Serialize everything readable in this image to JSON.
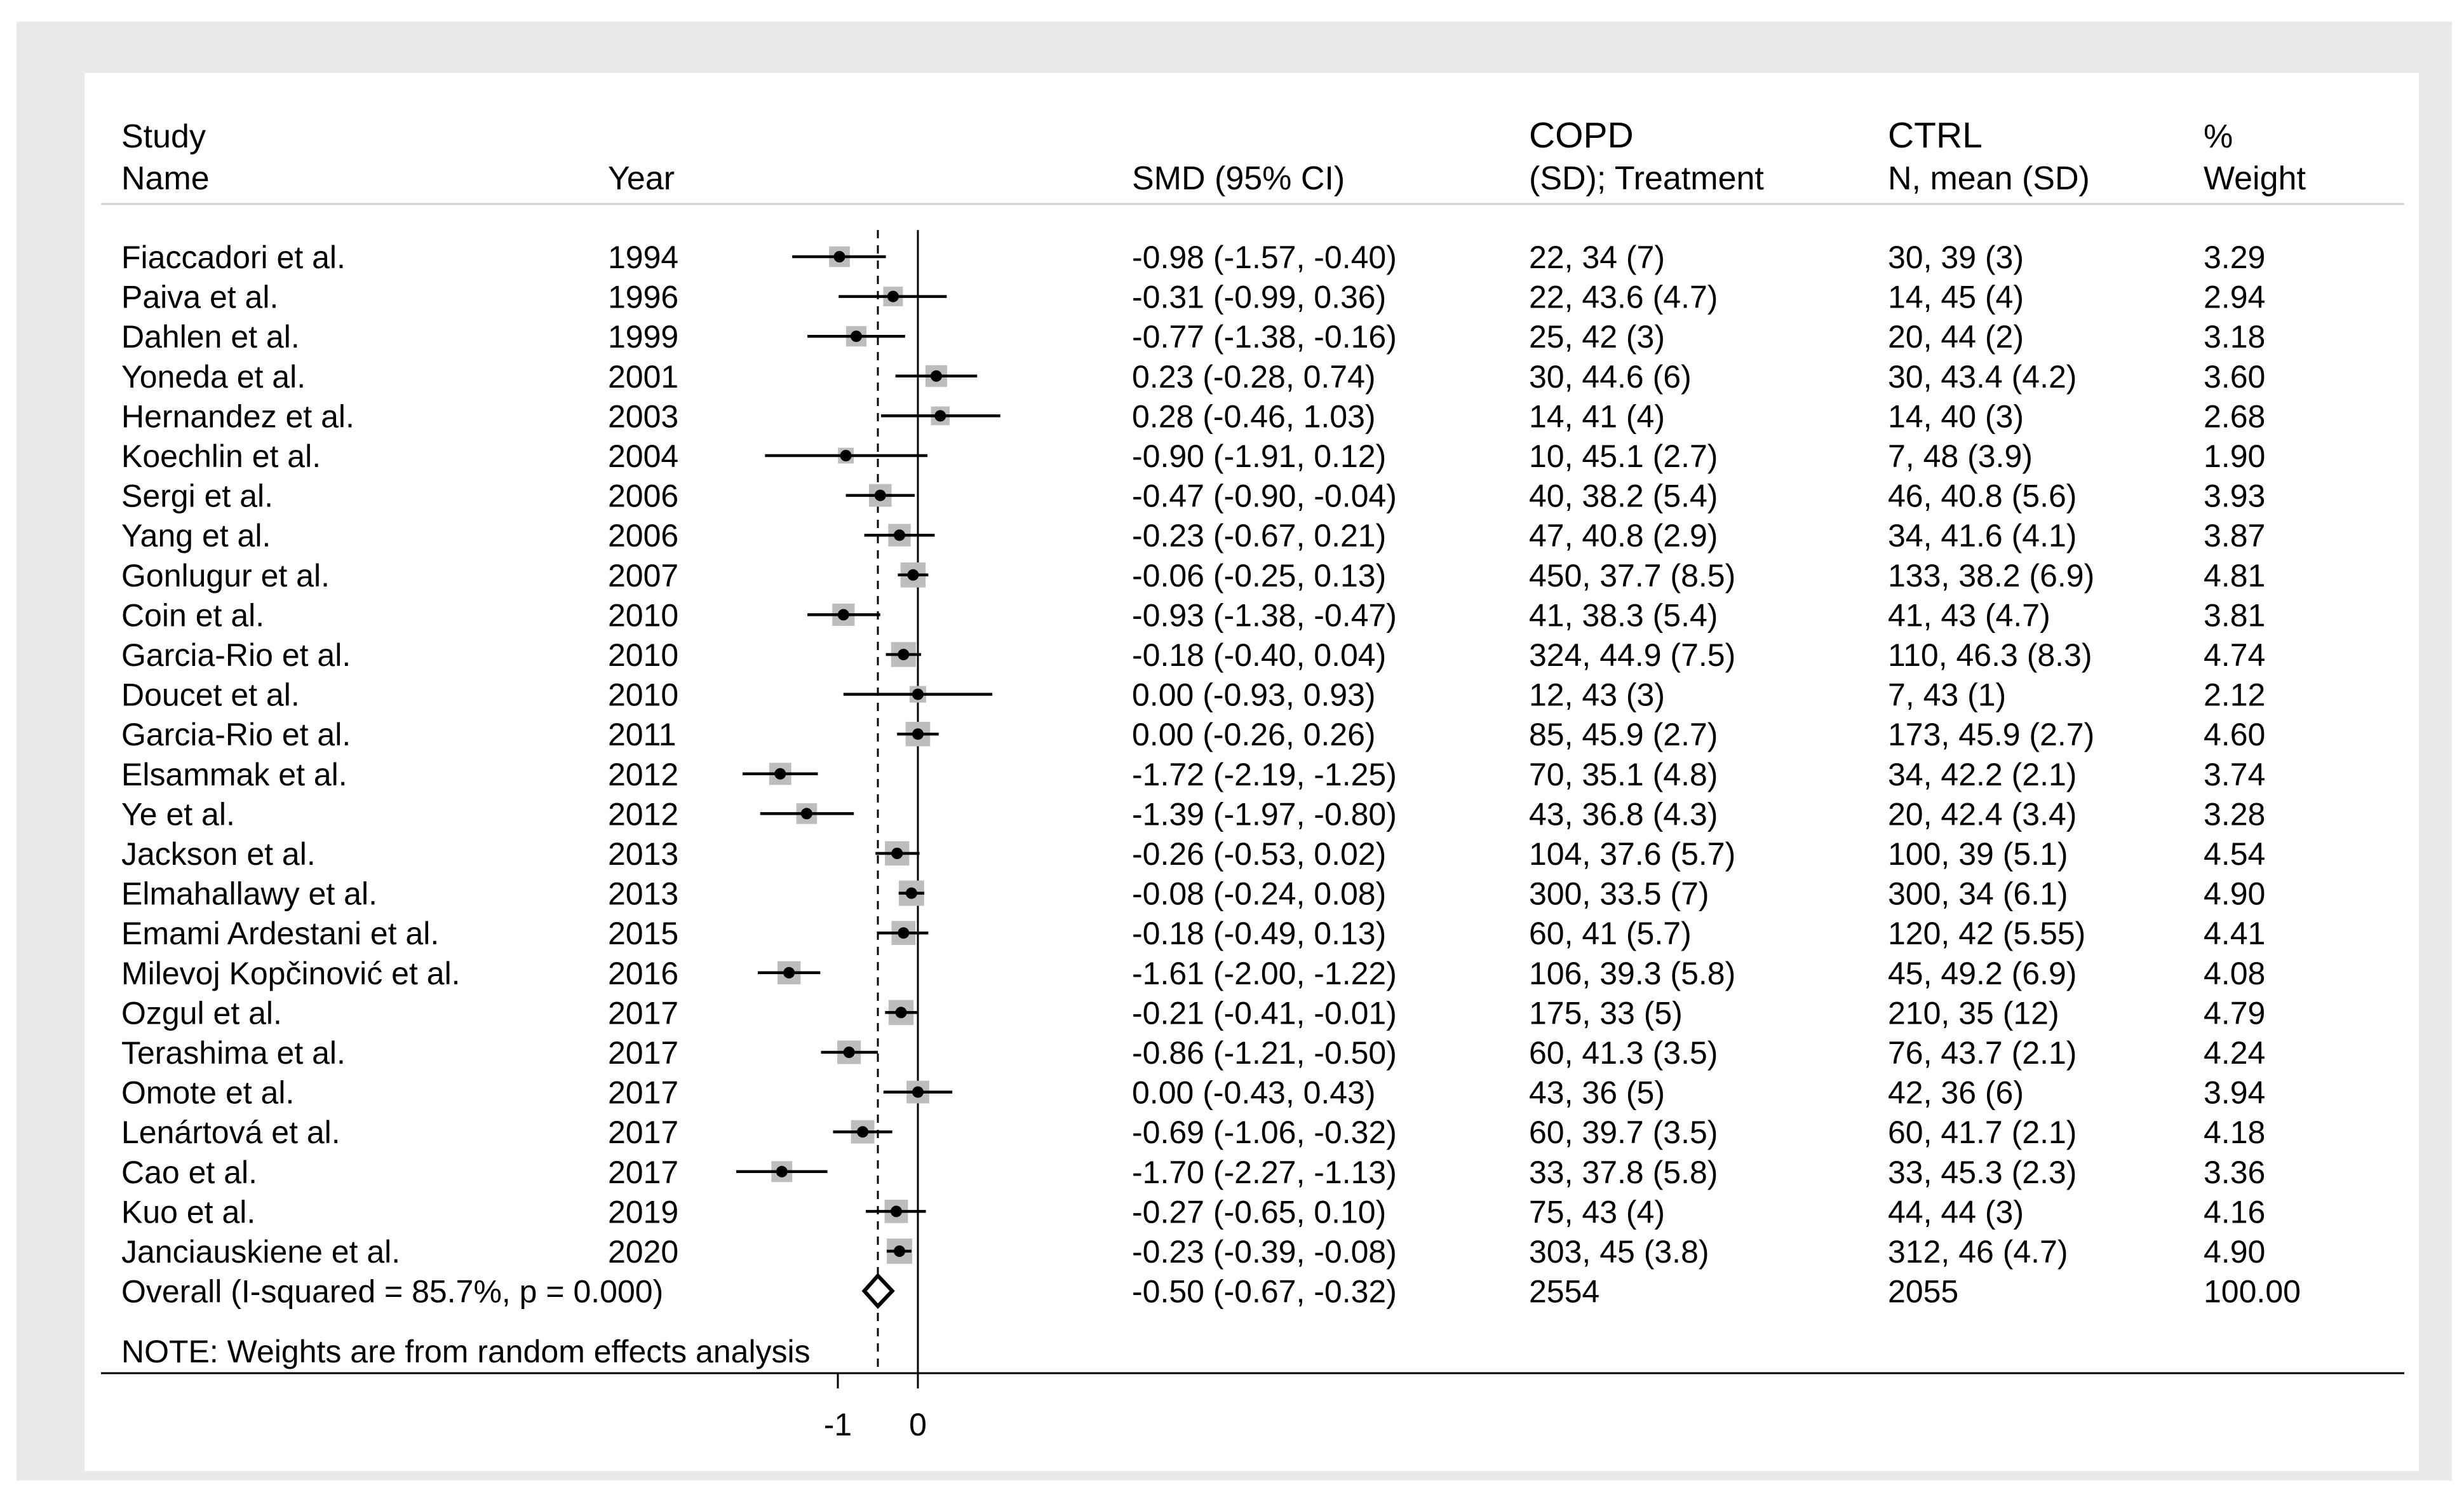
{
  "chart_data": {
    "type": "forest",
    "headers": {
      "study": [
        "Study",
        "Name"
      ],
      "year": "Year",
      "smd": "SMD (95% CI)",
      "copd": [
        "COPD",
        "(SD); Treatment"
      ],
      "ctrl": [
        "CTRL",
        "N, mean (SD)"
      ],
      "weight": [
        "%",
        "Weight"
      ]
    },
    "studies": [
      {
        "name": "Fiaccadori et al.",
        "year": "1994",
        "smd": -0.98,
        "lo": -1.57,
        "hi": -0.4,
        "ci_text": "-0.98 (-1.57, -0.40)",
        "copd": "22, 34 (7)",
        "ctrl": "30, 39 (3)",
        "weight": "3.29"
      },
      {
        "name": "Paiva et al.",
        "year": "1996",
        "smd": -0.31,
        "lo": -0.99,
        "hi": 0.36,
        "ci_text": "-0.31 (-0.99, 0.36)",
        "copd": "22, 43.6 (4.7)",
        "ctrl": "14, 45 (4)",
        "weight": "2.94"
      },
      {
        "name": "Dahlen et al.",
        "year": "1999",
        "smd": -0.77,
        "lo": -1.38,
        "hi": -0.16,
        "ci_text": "-0.77 (-1.38, -0.16)",
        "copd": "25, 42 (3)",
        "ctrl": "20, 44 (2)",
        "weight": "3.18"
      },
      {
        "name": "Yoneda et al.",
        "year": "2001",
        "smd": 0.23,
        "lo": -0.28,
        "hi": 0.74,
        "ci_text": "0.23 (-0.28, 0.74)",
        "copd": "30, 44.6 (6)",
        "ctrl": "30, 43.4 (4.2)",
        "weight": "3.60"
      },
      {
        "name": "Hernandez et al.",
        "year": "2003",
        "smd": 0.28,
        "lo": -0.46,
        "hi": 1.03,
        "ci_text": "0.28 (-0.46, 1.03)",
        "copd": "14, 41 (4)",
        "ctrl": "14, 40 (3)",
        "weight": "2.68"
      },
      {
        "name": "Koechlin et al.",
        "year": "2004",
        "smd": -0.9,
        "lo": -1.91,
        "hi": 0.12,
        "ci_text": "-0.90 (-1.91, 0.12)",
        "copd": "10, 45.1 (2.7)",
        "ctrl": "7, 48 (3.9)",
        "weight": "1.90"
      },
      {
        "name": "Sergi et al.",
        "year": "2006",
        "smd": -0.47,
        "lo": -0.9,
        "hi": -0.04,
        "ci_text": "-0.47 (-0.90, -0.04)",
        "copd": "40, 38.2 (5.4)",
        "ctrl": "46, 40.8 (5.6)",
        "weight": "3.93"
      },
      {
        "name": "Yang et al.",
        "year": "2006",
        "smd": -0.23,
        "lo": -0.67,
        "hi": 0.21,
        "ci_text": "-0.23 (-0.67, 0.21)",
        "copd": "47, 40.8 (2.9)",
        "ctrl": "34, 41.6 (4.1)",
        "weight": "3.87"
      },
      {
        "name": "Gonlugur et al.",
        "year": "2007",
        "smd": -0.06,
        "lo": -0.25,
        "hi": 0.13,
        "ci_text": "-0.06 (-0.25, 0.13)",
        "copd": "450, 37.7 (8.5)",
        "ctrl": "133, 38.2 (6.9)",
        "weight": "4.81"
      },
      {
        "name": "Coin et al.",
        "year": "2010",
        "smd": -0.93,
        "lo": -1.38,
        "hi": -0.47,
        "ci_text": "-0.93 (-1.38, -0.47)",
        "copd": "41, 38.3 (5.4)",
        "ctrl": "41, 43 (4.7)",
        "weight": "3.81"
      },
      {
        "name": "Garcia-Rio et al.",
        "year": "2010",
        "smd": -0.18,
        "lo": -0.4,
        "hi": 0.04,
        "ci_text": "-0.18 (-0.40, 0.04)",
        "copd": "324, 44.9 (7.5)",
        "ctrl": "110, 46.3 (8.3)",
        "weight": "4.74"
      },
      {
        "name": "Doucet et al.",
        "year": "2010",
        "smd": 0.0,
        "lo": -0.93,
        "hi": 0.93,
        "ci_text": "0.00 (-0.93, 0.93)",
        "copd": "12, 43 (3)",
        "ctrl": "7, 43 (1)",
        "weight": "2.12"
      },
      {
        "name": "Garcia-Rio et al.",
        "year": "2011",
        "smd": 0.0,
        "lo": -0.26,
        "hi": 0.26,
        "ci_text": "0.00 (-0.26, 0.26)",
        "copd": "85, 45.9 (2.7)",
        "ctrl": "173, 45.9 (2.7)",
        "weight": "4.60"
      },
      {
        "name": "Elsammak et al.",
        "year": "2012",
        "smd": -1.72,
        "lo": -2.19,
        "hi": -1.25,
        "ci_text": "-1.72 (-2.19, -1.25)",
        "copd": "70, 35.1 (4.8)",
        "ctrl": "34, 42.2 (2.1)",
        "weight": "3.74"
      },
      {
        "name": "Ye et al.",
        "year": "2012",
        "smd": -1.39,
        "lo": -1.97,
        "hi": -0.8,
        "ci_text": "-1.39 (-1.97, -0.80)",
        "copd": "43, 36.8 (4.3)",
        "ctrl": "20, 42.4 (3.4)",
        "weight": "3.28"
      },
      {
        "name": "Jackson et al.",
        "year": "2013",
        "smd": -0.26,
        "lo": -0.53,
        "hi": 0.02,
        "ci_text": "-0.26 (-0.53, 0.02)",
        "copd": "104, 37.6 (5.7)",
        "ctrl": "100, 39 (5.1)",
        "weight": "4.54"
      },
      {
        "name": "Elmahallawy et al.",
        "year": "2013",
        "smd": -0.08,
        "lo": -0.24,
        "hi": 0.08,
        "ci_text": "-0.08 (-0.24, 0.08)",
        "copd": "300, 33.5 (7)",
        "ctrl": "300, 34 (6.1)",
        "weight": "4.90"
      },
      {
        "name": "Emami Ardestani et al.",
        "year": "2015",
        "smd": -0.18,
        "lo": -0.49,
        "hi": 0.13,
        "ci_text": "-0.18 (-0.49, 0.13)",
        "copd": "60, 41 (5.7)",
        "ctrl": "120, 42 (5.55)",
        "weight": "4.41"
      },
      {
        "name": "Milevoj Kopčinović et al.",
        "year": "2016",
        "smd": -1.61,
        "lo": -2.0,
        "hi": -1.22,
        "ci_text": "-1.61 (-2.00, -1.22)",
        "copd": "106, 39.3 (5.8)",
        "ctrl": "45, 49.2 (6.9)",
        "weight": "4.08"
      },
      {
        "name": "Ozgul et al.",
        "year": "2017",
        "smd": -0.21,
        "lo": -0.41,
        "hi": -0.01,
        "ci_text": "-0.21 (-0.41, -0.01)",
        "copd": "175, 33 (5)",
        "ctrl": "210, 35 (12)",
        "weight": "4.79"
      },
      {
        "name": "Terashima et al.",
        "year": "2017",
        "smd": -0.86,
        "lo": -1.21,
        "hi": -0.5,
        "ci_text": "-0.86 (-1.21, -0.50)",
        "copd": "60, 41.3 (3.5)",
        "ctrl": "76, 43.7 (2.1)",
        "weight": "4.24"
      },
      {
        "name": "Omote et al.",
        "year": "2017",
        "smd": 0.0,
        "lo": -0.43,
        "hi": 0.43,
        "ci_text": "0.00 (-0.43, 0.43)",
        "copd": "43, 36 (5)",
        "ctrl": "42, 36 (6)",
        "weight": "3.94"
      },
      {
        "name": "Lenártová et al.",
        "year": "2017",
        "smd": -0.69,
        "lo": -1.06,
        "hi": -0.32,
        "ci_text": "-0.69 (-1.06, -0.32)",
        "copd": "60, 39.7 (3.5)",
        "ctrl": "60, 41.7 (2.1)",
        "weight": "4.18"
      },
      {
        "name": "Cao et al.",
        "year": "2017",
        "smd": -1.7,
        "lo": -2.27,
        "hi": -1.13,
        "ci_text": "-1.70 (-2.27, -1.13)",
        "copd": "33, 37.8 (5.8)",
        "ctrl": "33, 45.3 (2.3)",
        "weight": "3.36"
      },
      {
        "name": "Kuo et al.",
        "year": "2019",
        "smd": -0.27,
        "lo": -0.65,
        "hi": 0.1,
        "ci_text": "-0.27 (-0.65, 0.10)",
        "copd": "75, 43 (4)",
        "ctrl": "44, 44 (3)",
        "weight": "4.16"
      },
      {
        "name": "Janciauskiene et al.",
        "year": "2020",
        "smd": -0.23,
        "lo": -0.39,
        "hi": -0.08,
        "ci_text": "-0.23 (-0.39, -0.08)",
        "copd": "303, 45 (3.8)",
        "ctrl": "312, 46 (4.7)",
        "weight": "4.90"
      }
    ],
    "overall": {
      "label": "Overall  (I-squared = 85.7%, p = 0.000)",
      "smd": -0.5,
      "lo": -0.67,
      "hi": -0.32,
      "ci_text": "-0.50 (-0.67, -0.32)",
      "copd": "2554",
      "ctrl": "2055",
      "weight": "100.00"
    },
    "note": "NOTE: Weights are from random effects analysis",
    "x_ticks": [
      {
        "value": -1,
        "label": "-1"
      },
      {
        "value": 0,
        "label": "0"
      }
    ],
    "xlim": [
      -2.27,
      1.03
    ],
    "null_line": 0,
    "overall_line": -0.5,
    "colors": {
      "marker": "#000000",
      "weight_box": "#bdbdbd",
      "frame": "#eaeaea"
    }
  }
}
